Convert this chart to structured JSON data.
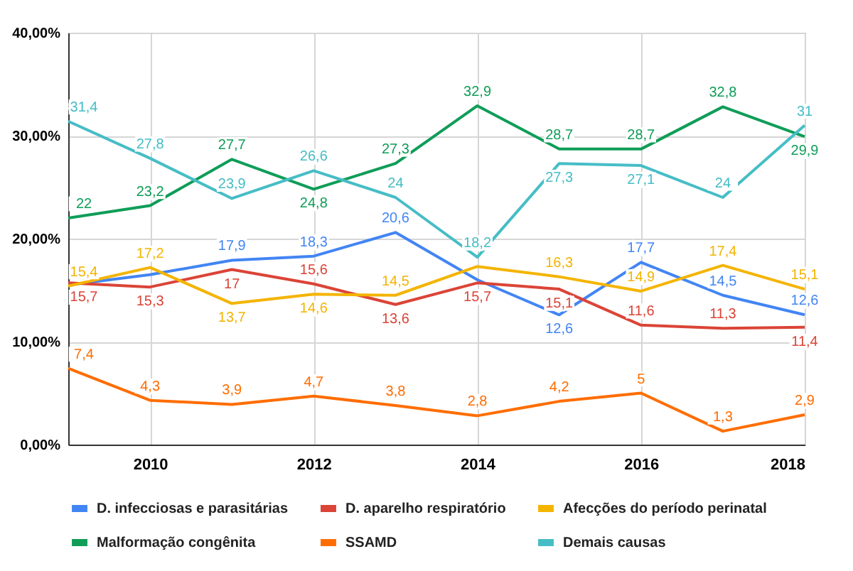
{
  "chart_data": {
    "type": "line",
    "x": [
      2009,
      2010,
      2011,
      2012,
      2013,
      2014,
      2015,
      2016,
      2017,
      2018
    ],
    "xlim": [
      2009,
      2018
    ],
    "xticks": [
      2010,
      2012,
      2014,
      2016,
      2018
    ],
    "ylim": [
      0,
      40
    ],
    "yticks": [
      {
        "value": 0,
        "label": "0,00%"
      },
      {
        "value": 10,
        "label": "10,00%"
      },
      {
        "value": 20,
        "label": "20,00%"
      },
      {
        "value": 30,
        "label": "30,00%"
      },
      {
        "value": 40,
        "label": "40,00%"
      }
    ],
    "grid": true,
    "legend": "bottom",
    "marker": "none",
    "line_style": "solid",
    "series": [
      {
        "name": "D. infecciosas e parasitárias",
        "color": "#4285f4",
        "values": [
          15.5,
          16.5,
          17.9,
          18.3,
          20.6,
          16.0,
          12.6,
          17.7,
          14.5,
          12.6
        ],
        "value_labels": [
          null,
          null,
          "17,9",
          "18,3",
          "20,6",
          null,
          "12,6",
          "17,7",
          "14,5",
          "12,6"
        ]
      },
      {
        "name": "D. aparelho respiratório",
        "color": "#db4437",
        "values": [
          15.7,
          15.3,
          17,
          15.6,
          13.6,
          15.7,
          15.1,
          11.6,
          11.3,
          11.4
        ],
        "value_labels": [
          "15,7",
          "15,3",
          "17",
          "15,6",
          "13,6",
          "15,7",
          "15,1",
          "11,6",
          "11,3",
          "11,4"
        ]
      },
      {
        "name": "Afecções do período perinatal",
        "color": "#f4b400",
        "values": [
          15.4,
          17.2,
          13.7,
          14.6,
          14.5,
          17.3,
          16.3,
          14.9,
          17.4,
          15.1
        ],
        "value_labels": [
          "15,4",
          "17,2",
          "13,7",
          "14,6",
          "14,5",
          null,
          "16,3",
          "14,9",
          "17,4",
          "15,1"
        ]
      },
      {
        "name": "Malformação congênita",
        "color": "#0f9d58",
        "values": [
          22,
          23.2,
          27.7,
          24.8,
          27.3,
          32.9,
          28.7,
          28.7,
          32.8,
          29.9
        ],
        "value_labels": [
          "22",
          "23,2",
          "27,7",
          "24,8",
          "27,3",
          "32,9",
          "28,7",
          "28,7",
          "32,8",
          "29,9"
        ]
      },
      {
        "name": "SSAMD",
        "color": "#ff6d01",
        "values": [
          7.4,
          4.3,
          3.9,
          4.7,
          3.8,
          2.8,
          4.2,
          5,
          1.3,
          2.9
        ],
        "value_labels": [
          "7,4",
          "4,3",
          "3,9",
          "4,7",
          "3,8",
          "2,8",
          "4,2",
          "5",
          "1,3",
          "2,9"
        ]
      },
      {
        "name": "Demais causas",
        "color": "#46bdc6",
        "values": [
          31.4,
          27.8,
          23.9,
          26.6,
          24,
          18.2,
          27.3,
          27.1,
          24,
          31
        ],
        "value_labels": [
          "31,4",
          "27,8",
          "23,9",
          "26,6",
          "24",
          "18,2",
          "27,3",
          "27,1",
          "24",
          "31"
        ]
      }
    ]
  }
}
